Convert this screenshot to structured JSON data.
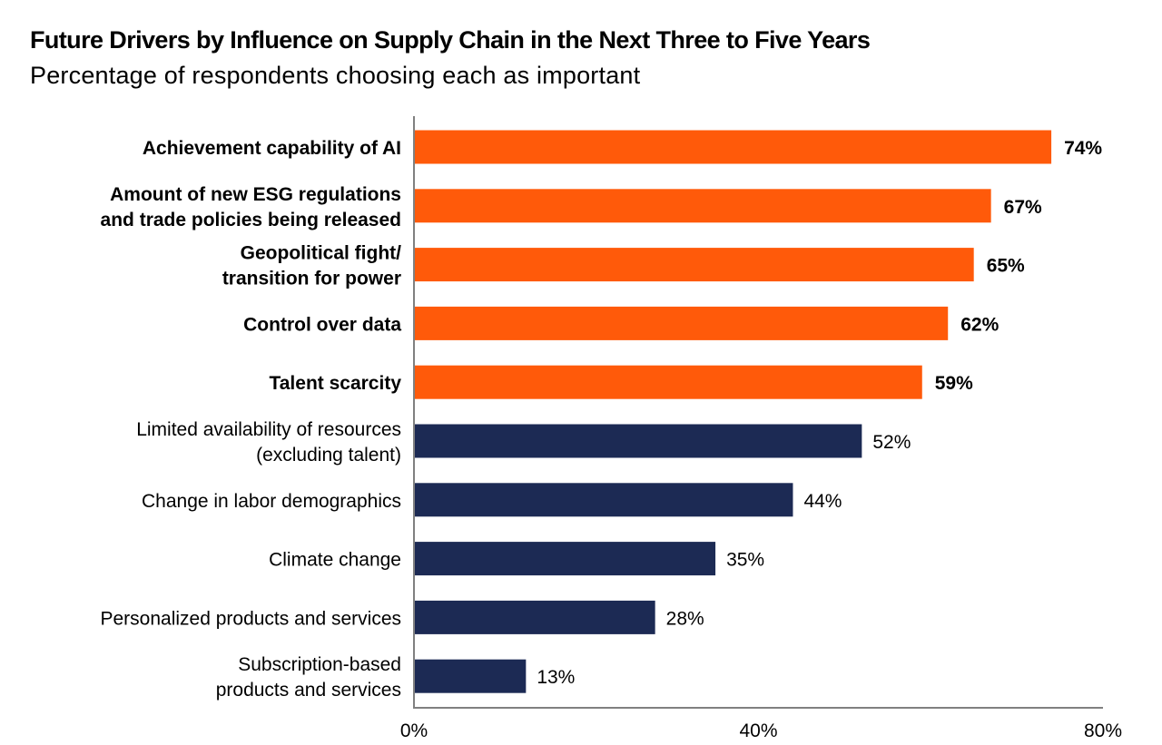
{
  "chart_data": {
    "type": "bar",
    "orientation": "horizontal",
    "title": "Future Drivers by Influence on Supply Chain in the Next Three to Five Years",
    "subtitle": "Percentage of respondents choosing each as important",
    "xlabel": "",
    "ylabel": "",
    "xlim": [
      0,
      80
    ],
    "x_ticks": [
      "0%",
      "40%",
      "80%"
    ],
    "x_tick_values": [
      0,
      40,
      80
    ],
    "grid": false,
    "legend": "none",
    "value_suffix": "%",
    "colors": {
      "highlight": "#FF5A0A",
      "default": "#1C2A54",
      "axis": "#808080"
    },
    "categories": [
      [
        "Achievement capability of AI"
      ],
      [
        "Amount of new ESG regulations",
        "and trade policies being released"
      ],
      [
        "Geopolitical fight/",
        "transition for power"
      ],
      [
        "Control over data"
      ],
      [
        "Talent scarcity"
      ],
      [
        "Limited availability of resources",
        "(excluding talent)"
      ],
      [
        "Change in labor demographics"
      ],
      [
        "Climate change"
      ],
      [
        "Personalized products and services"
      ],
      [
        "Subscription-based",
        "products and services"
      ]
    ],
    "values": [
      74,
      67,
      65,
      62,
      59,
      52,
      44,
      35,
      28,
      13
    ],
    "value_labels": [
      "74%",
      "67%",
      "65%",
      "62%",
      "59%",
      "52%",
      "44%",
      "35%",
      "28%",
      "13%"
    ],
    "highlighted": [
      true,
      true,
      true,
      true,
      true,
      false,
      false,
      false,
      false,
      false
    ]
  }
}
